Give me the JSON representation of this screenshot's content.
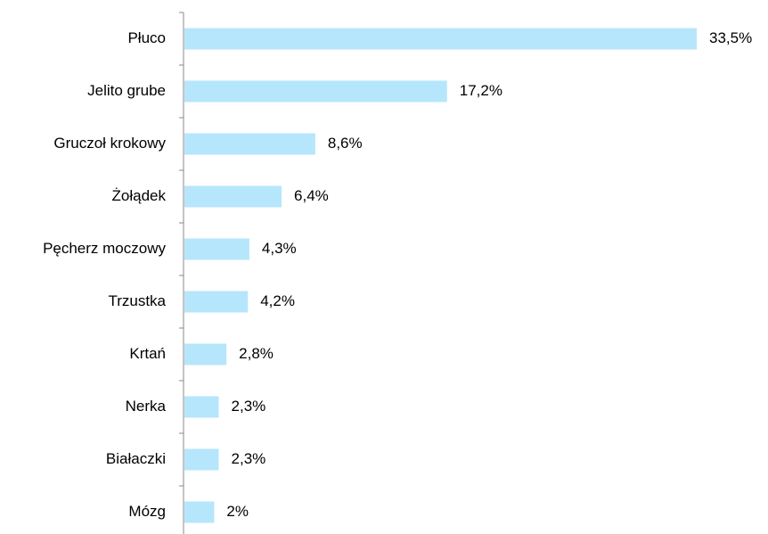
{
  "chart_data": {
    "type": "bar",
    "orientation": "horizontal",
    "categories": [
      "Płuco",
      "Jelito grube",
      "Gruczoł krokowy",
      "Żołądek",
      "Pęcherz moczowy",
      "Trzustka",
      "Krtań",
      "Nerka",
      "Białaczki",
      "Mózg"
    ],
    "values": [
      33.5,
      17.2,
      8.6,
      6.4,
      4.3,
      4.2,
      2.8,
      2.3,
      2.3,
      2
    ],
    "value_labels": [
      "33,5%",
      "17,2%",
      "8,6%",
      "6,4%",
      "4,3%",
      "4,2%",
      "2,8%",
      "2,3%",
      "2,3%",
      "2%"
    ],
    "color": "#b6e6fb"
  }
}
